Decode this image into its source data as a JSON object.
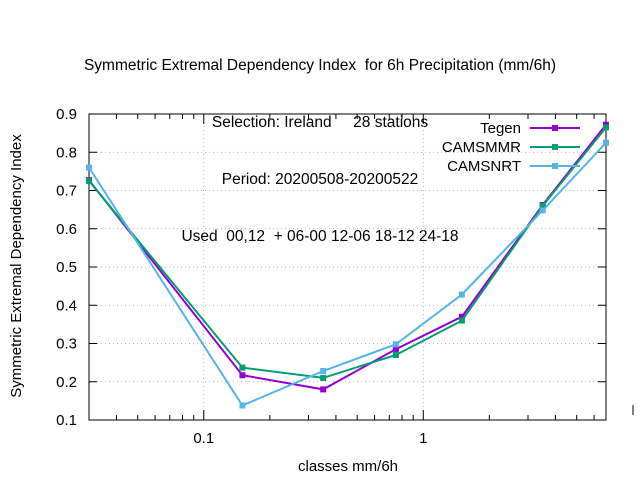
{
  "chart_data": {
    "type": "line",
    "title_lines": [
      "Symmetric Extremal Dependency Index  for 6h Precipitation (mm/6h)",
      "Selection: Ireland     28 stations",
      "Period: 20200508-20200522",
      "Used  00,12  + 06-00 12-06 18-12 24-18"
    ],
    "xlabel": "classes mm/6h",
    "ylabel": "Symmetric Extremal Dependency Index",
    "x_scale": "log",
    "xlim": [
      0.03,
      6.8
    ],
    "ylim": [
      0.1,
      0.9
    ],
    "x_ticks": [
      {
        "value": 0.1,
        "label": "0.1"
      },
      {
        "value": 1,
        "label": "1"
      }
    ],
    "y_ticks": [
      "0.1",
      "0.2",
      "0.3",
      "0.4",
      "0.5",
      "0.6",
      "0.7",
      "0.8",
      "0.9"
    ],
    "grid": true,
    "legend_position": "top-right",
    "series": [
      {
        "name": "Tegen",
        "color": "#9400d3",
        "x": [
          0.03,
          0.15,
          0.35,
          0.75,
          1.5,
          3.5,
          6.8
        ],
        "y": [
          0.727,
          0.217,
          0.18,
          0.285,
          0.37,
          0.662,
          0.872
        ]
      },
      {
        "name": "CAMSMMR",
        "color": "#009e73",
        "x": [
          0.03,
          0.15,
          0.35,
          0.75,
          1.5,
          3.5,
          6.8
        ],
        "y": [
          0.725,
          0.237,
          0.21,
          0.27,
          0.36,
          0.66,
          0.865
        ]
      },
      {
        "name": "CAMSNRT",
        "color": "#56b4e9",
        "x": [
          0.03,
          0.15,
          0.35,
          0.75,
          1.5,
          3.5,
          6.8
        ],
        "y": [
          0.76,
          0.138,
          0.228,
          0.298,
          0.428,
          0.648,
          0.825
        ]
      }
    ]
  }
}
